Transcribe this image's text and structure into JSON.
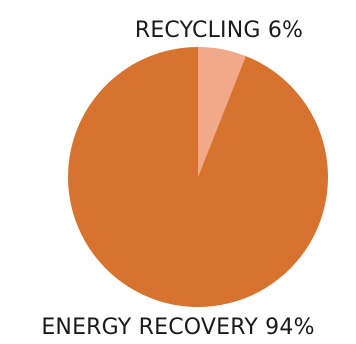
{
  "chart_data": {
    "type": "pie",
    "categories": [
      "RECYCLING",
      "ENERGY RECOVERY"
    ],
    "values": [
      6,
      94
    ],
    "unit": "%",
    "colors": [
      "#F2A98A",
      "#D7732F"
    ],
    "labels": [
      "RECYCLING 6%",
      "ENERGY RECOVERY 94%"
    ],
    "title": "",
    "legend": "none",
    "start_angle_deg": 0,
    "direction": "clockwise"
  }
}
